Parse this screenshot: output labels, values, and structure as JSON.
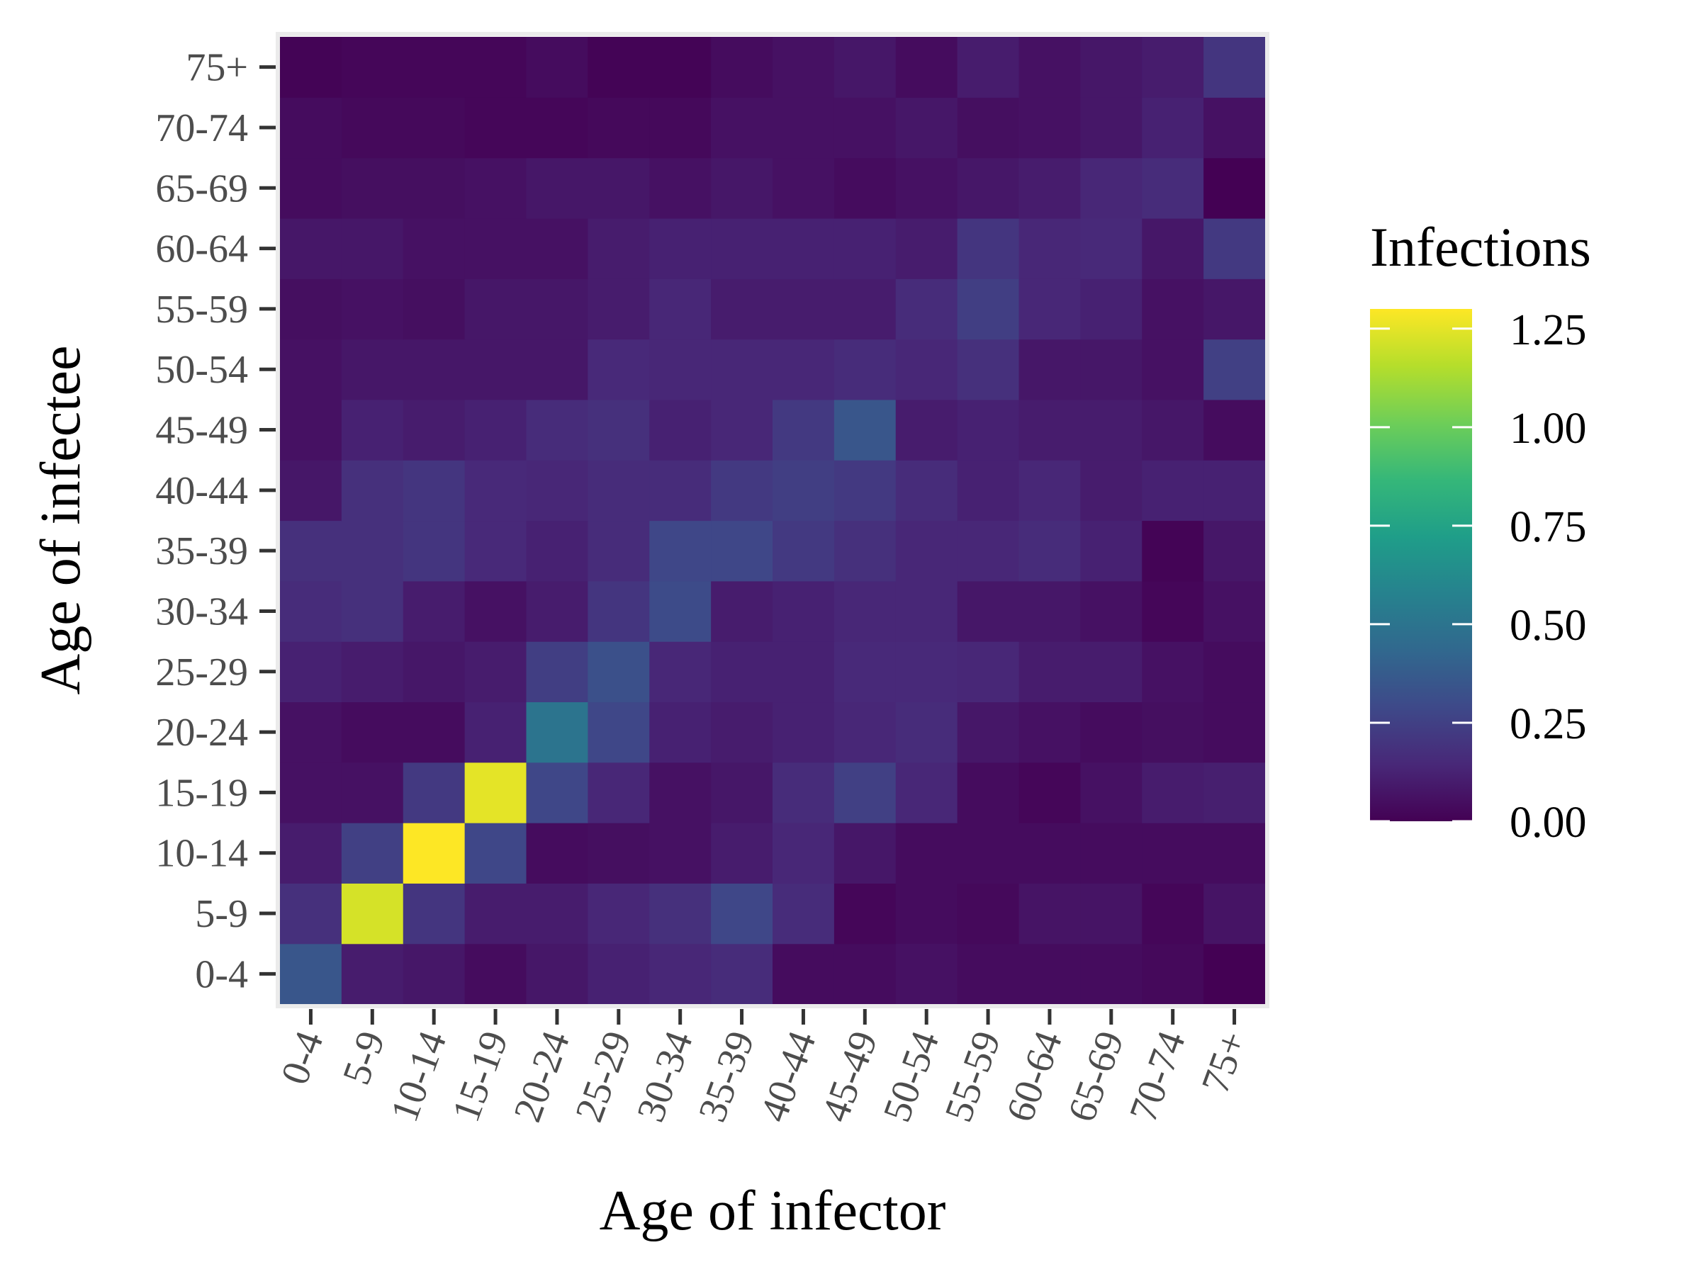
{
  "chart_data": {
    "type": "heatmap",
    "xlabel": "Age of infector",
    "ylabel": "Age of infectee",
    "x_categories": [
      "0-4",
      "5-9",
      "10-14",
      "15-19",
      "20-24",
      "25-29",
      "30-34",
      "35-39",
      "40-44",
      "45-49",
      "50-54",
      "55-59",
      "60-64",
      "65-69",
      "70-74",
      "75+"
    ],
    "y_categories": [
      "0-4",
      "5-9",
      "10-14",
      "15-19",
      "20-24",
      "25-29",
      "30-34",
      "35-39",
      "40-44",
      "45-49",
      "50-54",
      "55-59",
      "60-64",
      "65-69",
      "70-74",
      "75+"
    ],
    "values": [
      [
        0.35,
        0.1,
        0.08,
        0.04,
        0.08,
        0.12,
        0.14,
        0.16,
        0.04,
        0.04,
        0.06,
        0.04,
        0.04,
        0.04,
        0.03,
        0.0
      ],
      [
        0.18,
        1.22,
        0.2,
        0.1,
        0.1,
        0.14,
        0.18,
        0.28,
        0.16,
        0.02,
        0.04,
        0.03,
        0.07,
        0.07,
        0.02,
        0.07
      ],
      [
        0.1,
        0.25,
        1.3,
        0.28,
        0.04,
        0.05,
        0.06,
        0.1,
        0.14,
        0.08,
        0.04,
        0.04,
        0.04,
        0.04,
        0.04,
        0.04
      ],
      [
        0.06,
        0.06,
        0.22,
        1.25,
        0.28,
        0.14,
        0.06,
        0.08,
        0.16,
        0.25,
        0.14,
        0.04,
        0.02,
        0.06,
        0.1,
        0.11
      ],
      [
        0.06,
        0.04,
        0.04,
        0.12,
        0.5,
        0.28,
        0.12,
        0.1,
        0.12,
        0.14,
        0.16,
        0.08,
        0.06,
        0.04,
        0.05,
        0.04
      ],
      [
        0.12,
        0.1,
        0.08,
        0.1,
        0.24,
        0.32,
        0.14,
        0.12,
        0.12,
        0.15,
        0.15,
        0.14,
        0.1,
        0.1,
        0.06,
        0.04
      ],
      [
        0.16,
        0.18,
        0.1,
        0.06,
        0.1,
        0.2,
        0.3,
        0.1,
        0.12,
        0.14,
        0.14,
        0.08,
        0.08,
        0.06,
        0.02,
        0.06
      ],
      [
        0.18,
        0.18,
        0.2,
        0.15,
        0.12,
        0.16,
        0.28,
        0.28,
        0.22,
        0.18,
        0.14,
        0.14,
        0.16,
        0.12,
        0.01,
        0.08
      ],
      [
        0.08,
        0.18,
        0.2,
        0.15,
        0.14,
        0.16,
        0.16,
        0.22,
        0.24,
        0.22,
        0.16,
        0.12,
        0.14,
        0.1,
        0.12,
        0.12
      ],
      [
        0.06,
        0.12,
        0.1,
        0.12,
        0.16,
        0.18,
        0.12,
        0.14,
        0.22,
        0.35,
        0.1,
        0.12,
        0.1,
        0.1,
        0.08,
        0.04
      ],
      [
        0.06,
        0.08,
        0.08,
        0.08,
        0.08,
        0.15,
        0.14,
        0.14,
        0.14,
        0.16,
        0.14,
        0.18,
        0.08,
        0.08,
        0.06,
        0.25
      ],
      [
        0.05,
        0.06,
        0.05,
        0.08,
        0.08,
        0.1,
        0.14,
        0.1,
        0.1,
        0.1,
        0.16,
        0.24,
        0.14,
        0.12,
        0.06,
        0.08
      ],
      [
        0.08,
        0.08,
        0.06,
        0.06,
        0.06,
        0.1,
        0.12,
        0.12,
        0.12,
        0.12,
        0.1,
        0.2,
        0.14,
        0.15,
        0.08,
        0.22
      ],
      [
        0.04,
        0.05,
        0.05,
        0.06,
        0.08,
        0.08,
        0.06,
        0.08,
        0.06,
        0.04,
        0.06,
        0.08,
        0.1,
        0.14,
        0.16,
        0.0
      ],
      [
        0.04,
        0.03,
        0.03,
        0.02,
        0.02,
        0.03,
        0.03,
        0.06,
        0.06,
        0.06,
        0.08,
        0.05,
        0.06,
        0.08,
        0.12,
        0.06
      ],
      [
        0.01,
        0.02,
        0.02,
        0.02,
        0.04,
        0.01,
        0.01,
        0.04,
        0.06,
        0.08,
        0.04,
        0.1,
        0.06,
        0.08,
        0.1,
        0.2
      ]
    ],
    "value_range": [
      0,
      1.3
    ],
    "colormap": [
      "#440154",
      "#482878",
      "#3e4989",
      "#31688e",
      "#26828e",
      "#1f9e89",
      "#35b779",
      "#6ece58",
      "#b5de2b",
      "#fde725"
    ],
    "legend": {
      "title": "Infections",
      "ticks": [
        1.25,
        1.0,
        0.75,
        0.5,
        0.25,
        0.0
      ],
      "tick_labels": [
        "1.25",
        "1.00",
        "0.75",
        "0.50",
        "0.25",
        "0.00"
      ],
      "placement": "right"
    },
    "grid": false,
    "panel_border_color": "#ebebeb"
  }
}
